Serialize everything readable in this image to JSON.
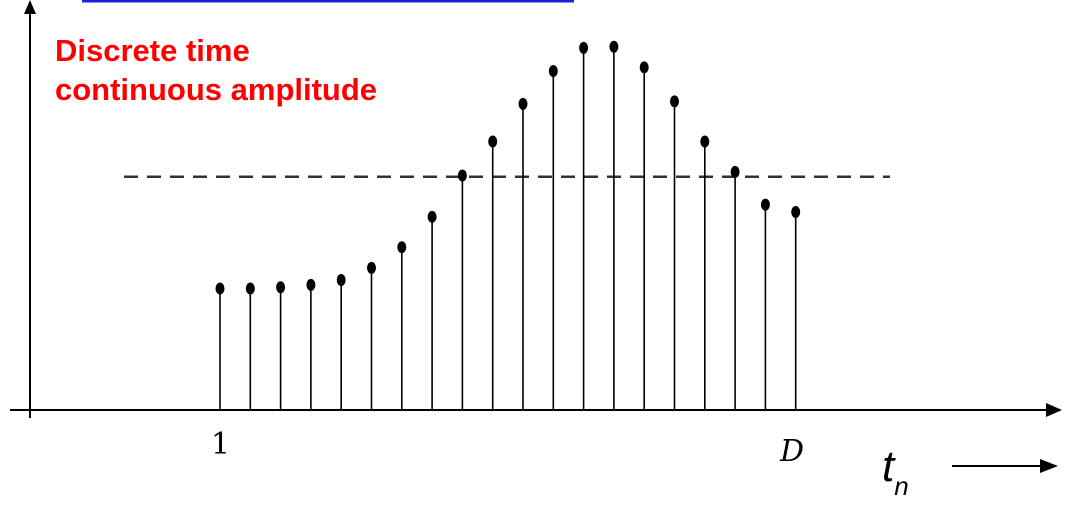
{
  "caption": {
    "line1": "Discrete time",
    "line2": "continuous amplitude",
    "color": "#ff0000"
  },
  "top_bar_color": "#1f1fd6",
  "x_axis": {
    "start_label": "1",
    "end_label": "D",
    "axis_label": "t",
    "axis_label_subscript": "n",
    "arrow": "long-right-arrow"
  },
  "chart_data": {
    "type": "stem",
    "n_samples": 20,
    "values": [
      100,
      100,
      101,
      103,
      107,
      117,
      134,
      159,
      193,
      221,
      252,
      279,
      298,
      299,
      282,
      254,
      221,
      196,
      169,
      163
    ],
    "threshold": 192,
    "threshold_style": "dashed",
    "xlabel": "t_n",
    "grid": false
  }
}
